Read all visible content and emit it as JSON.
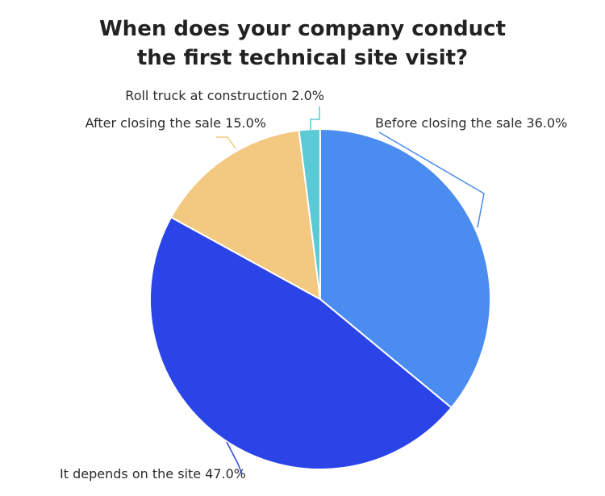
{
  "title_lines": [
    "When does your company conduct",
    "the first technical site visit?"
  ],
  "chart_data": {
    "type": "pie",
    "title": "When does your company conduct the first technical site visit?",
    "slices": [
      {
        "label": "Before closing the sale",
        "value": 36.0,
        "display": "Before closing the sale 36.0%",
        "color": "#4a8cf0"
      },
      {
        "label": "It depends on the site",
        "value": 47.0,
        "display": "It depends on the site 47.0%",
        "color": "#2a44e8"
      },
      {
        "label": "After closing the sale",
        "value": 15.0,
        "display": "After closing the sale 15.0%",
        "color": "#f3c880"
      },
      {
        "label": "Roll truck at construction",
        "value": 2.0,
        "display": "Roll truck at construction 2.0%",
        "color": "#5ccad6"
      }
    ],
    "start": "12 o'clock, clockwise",
    "legend": "none — labels outside slices"
  }
}
